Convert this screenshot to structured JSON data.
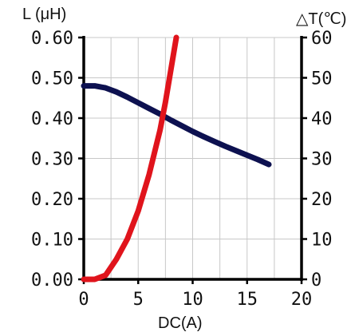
{
  "chart_data": {
    "type": "line",
    "xlabel": "DC(A)",
    "ylabel_left": "L (μH)",
    "ylabel_right": "△T(℃)",
    "xlim": [
      0,
      20
    ],
    "ylim_left": [
      0,
      0.6
    ],
    "ylim_right": [
      0,
      60
    ],
    "x_ticks": [
      "0",
      "5",
      "10",
      "15",
      "20"
    ],
    "y_left_ticks": [
      "0.00",
      "0.10",
      "0.20",
      "0.30",
      "0.40",
      "0.50",
      "0.60"
    ],
    "y_right_ticks": [
      "0",
      "10",
      "20",
      "30",
      "40",
      "50",
      "60"
    ],
    "grid": true,
    "series": [
      {
        "axis": "left",
        "color": "#0d1150",
        "x": [
          0,
          1,
          2,
          3,
          4,
          5,
          6,
          7,
          8,
          9,
          10,
          11,
          12,
          13,
          14,
          15,
          16,
          17
        ],
        "y": [
          0.48,
          0.48,
          0.475,
          0.465,
          0.452,
          0.438,
          0.424,
          0.41,
          0.395,
          0.381,
          0.367,
          0.354,
          0.342,
          0.33,
          0.319,
          0.308,
          0.297,
          0.285
        ]
      },
      {
        "axis": "right",
        "color": "#e0141c",
        "x": [
          0,
          1,
          2,
          3,
          4,
          5,
          6,
          7,
          7.5,
          8,
          8.5
        ],
        "y": [
          0,
          0,
          1,
          5,
          10,
          17,
          26,
          37,
          44,
          52,
          60
        ]
      }
    ]
  }
}
